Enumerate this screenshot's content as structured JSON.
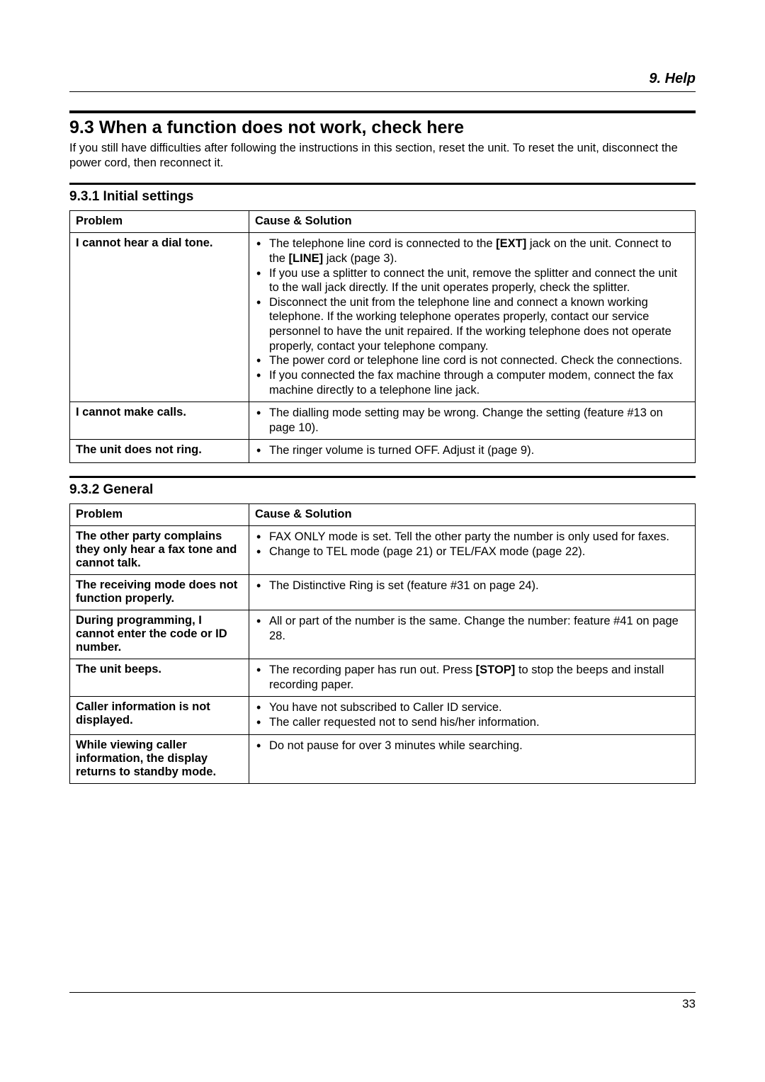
{
  "chapter": "9. Help",
  "section_title": "9.3 When a function does not work, check here",
  "intro": "If you still have difficulties after following the instructions in this section, reset the unit. To reset the unit, disconnect the power cord, then reconnect it.",
  "page_number": "33",
  "table_headers": {
    "problem": "Problem",
    "solution": "Cause & Solution"
  },
  "sub1": {
    "title": "9.3.1 Initial settings",
    "rows": [
      {
        "problem": "I cannot hear a dial tone.",
        "solutions": [
          {
            "pre": "The telephone line cord is connected to the ",
            "b1": "[EXT]",
            "mid": " jack on the unit. Connect to the ",
            "b2": "[LINE]",
            "post": " jack (page 3)."
          },
          {
            "pre": "If you use a splitter to connect the unit, remove the splitter and connect the unit to the wall jack directly. If the unit operates properly, check the splitter."
          },
          {
            "pre": "Disconnect the unit from the telephone line and connect a known working telephone. If the working telephone operates properly, contact our service personnel to have the unit repaired. If the working telephone does not operate properly, contact your telephone company."
          },
          {
            "pre": "The power cord or telephone line cord is not connected. Check the connections."
          },
          {
            "pre": "If you connected the fax machine through a computer modem, connect the fax machine directly to a telephone line jack."
          }
        ]
      },
      {
        "problem": "I cannot make calls.",
        "solutions": [
          {
            "pre": "The dialling mode setting may be wrong. Change the setting (feature #13 on page 10)."
          }
        ]
      },
      {
        "problem": "The unit does not ring.",
        "solutions": [
          {
            "pre": "The ringer volume is turned OFF. Adjust it (page 9)."
          }
        ]
      }
    ]
  },
  "sub2": {
    "title": "9.3.2 General",
    "rows": [
      {
        "problem": "The other party complains they only hear a fax tone and cannot talk.",
        "solutions": [
          {
            "pre": "FAX ONLY mode is set. Tell the other party the number is only used for faxes."
          },
          {
            "pre": "Change to TEL mode (page 21) or TEL/FAX mode (page 22)."
          }
        ]
      },
      {
        "problem": "The receiving mode does not function properly.",
        "solutions": [
          {
            "pre": "The Distinctive Ring is set (feature #31 on page 24)."
          }
        ]
      },
      {
        "problem": "During programming, I cannot enter the code or ID number.",
        "solutions": [
          {
            "pre": "All or part of the number is the same. Change the number: feature #41 on page 28."
          }
        ]
      },
      {
        "problem": "The unit beeps.",
        "solutions": [
          {
            "pre": "The recording paper has run out. Press ",
            "b1": "[STOP]",
            "post": " to stop the beeps and install recording paper."
          }
        ]
      },
      {
        "problem": "Caller information is not displayed.",
        "solutions": [
          {
            "pre": "You have not subscribed to Caller ID service."
          },
          {
            "pre": "The caller requested not to send his/her information."
          }
        ]
      },
      {
        "problem": "While viewing caller information, the display returns to standby mode.",
        "solutions": [
          {
            "pre": "Do not pause for over 3 minutes while searching."
          }
        ]
      }
    ]
  }
}
